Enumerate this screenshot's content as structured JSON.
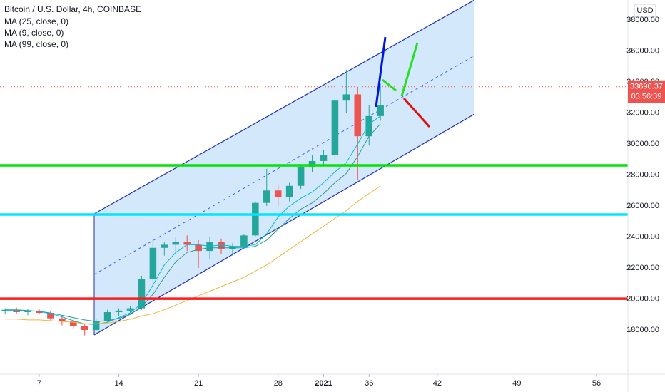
{
  "chart_data": {
    "type": "candlestick",
    "title": "Bitcoin / U.S. Dollar, 4h, COINBASE",
    "currency": "USD",
    "x": [
      4,
      5,
      6,
      7,
      8,
      9,
      10,
      11,
      12,
      13,
      14,
      15,
      16,
      17,
      18,
      19,
      20,
      21,
      22,
      23,
      24,
      25,
      26,
      27,
      28,
      29,
      30,
      31,
      32,
      33,
      34,
      35,
      36,
      37
    ],
    "open": [
      19200,
      19300,
      19150,
      19250,
      19100,
      18750,
      18550,
      18250,
      18000,
      18600,
      19150,
      19250,
      19400,
      21300,
      23300,
      23500,
      23700,
      23500,
      23100,
      23700,
      23200,
      23400,
      24100,
      26200,
      27000,
      26600,
      27300,
      28500,
      28900,
      29300,
      32800,
      33200,
      30500,
      31800
    ],
    "high": [
      19400,
      19450,
      19350,
      19350,
      19200,
      18900,
      18700,
      18400,
      18700,
      19300,
      19400,
      19550,
      21500,
      23800,
      23700,
      24000,
      24100,
      23800,
      24000,
      23900,
      23600,
      24200,
      26300,
      28400,
      27400,
      27500,
      28700,
      29300,
      29600,
      33000,
      34800,
      33700,
      32500,
      33900
    ],
    "low": [
      19000,
      19050,
      18950,
      19000,
      18600,
      18300,
      18100,
      17650,
      17900,
      18500,
      18900,
      19100,
      19300,
      21100,
      22800,
      23000,
      23100,
      22000,
      22600,
      22900,
      22800,
      23200,
      24000,
      26000,
      26000,
      26300,
      27100,
      28200,
      28600,
      29000,
      32000,
      27700,
      29900,
      31500
    ],
    "close": [
      19300,
      19150,
      19250,
      19100,
      18750,
      18550,
      18250,
      18000,
      18600,
      19150,
      19250,
      19400,
      21300,
      23300,
      23500,
      23700,
      23500,
      23100,
      23700,
      23200,
      23400,
      24100,
      26200,
      27000,
      26600,
      27300,
      28500,
      28900,
      29300,
      32800,
      33200,
      30500,
      31800,
      32500
    ],
    "up_color": "#26a69a",
    "down_color": "#ef5350",
    "series": [
      {
        "name": "MA (25, close, 0)",
        "color": "#2a9d8f",
        "values": [
          19300,
          19300,
          19250,
          19200,
          19100,
          18950,
          18800,
          18650,
          18550,
          18600,
          18750,
          19000,
          19500,
          20300,
          21400,
          22400,
          23000,
          23200,
          23300,
          23300,
          23300,
          23300,
          23400,
          23800,
          24500,
          25200,
          25800,
          26200,
          26800,
          27500,
          28100,
          29200,
          30500,
          31300
        ]
      },
      {
        "name": "MA (9, close, 0)",
        "color": "#00bcd4",
        "values": [
          19250,
          19250,
          19230,
          19200,
          19050,
          18850,
          18600,
          18400,
          18350,
          18500,
          18800,
          19100,
          19700,
          20900,
          22200,
          23000,
          23500,
          23500,
          23400,
          23500,
          23400,
          23400,
          23500,
          24200,
          25300,
          26000,
          26500,
          26900,
          27500,
          28200,
          28800,
          30000,
          31300,
          31800
        ]
      },
      {
        "name": "MA (99, close, 0)",
        "color": "#f5b43a",
        "values": [
          18700,
          18700,
          18650,
          18650,
          18600,
          18550,
          18500,
          18400,
          18400,
          18450,
          18550,
          18700,
          18900,
          19050,
          19300,
          19600,
          19900,
          20200,
          20500,
          20800,
          21100,
          21400,
          21800,
          22200,
          22700,
          23200,
          23700,
          24200,
          24700,
          25200,
          25700,
          26300,
          26800,
          27300
        ]
      }
    ],
    "hlines": [
      {
        "value": 28620,
        "color": "#00e600"
      },
      {
        "value": 25450,
        "color": "#00e5ff"
      },
      {
        "value": 20020,
        "color": "#ff1a1a"
      }
    ],
    "last_price": 33690.37,
    "countdown": "03:56:39",
    "xlim": [
      3.55,
      58.76
    ],
    "ylim": [
      15150,
      39290
    ],
    "xticks": [
      7,
      14,
      21,
      28,
      {
        "value": 32,
        "label": "2021"
      },
      36,
      42,
      49,
      56
    ],
    "yticks": [
      {
        "value": 18000,
        "label": "18000.00"
      },
      {
        "value": 20000,
        "label": "20000.00"
      },
      {
        "value": 22000,
        "label": "22000.00"
      },
      {
        "value": 24000,
        "label": "24000.00"
      },
      {
        "value": 26000,
        "label": "26000.00"
      },
      {
        "value": 28000,
        "label": "28000.00"
      },
      {
        "value": 30000,
        "label": "30000.00"
      },
      {
        "value": 32000,
        "label": "32000.00"
      },
      {
        "value": 34000,
        "label": "34000.00"
      },
      {
        "value": 36000,
        "label": "36000.00"
      },
      {
        "value": 38000,
        "label": "38000.00"
      }
    ]
  }
}
